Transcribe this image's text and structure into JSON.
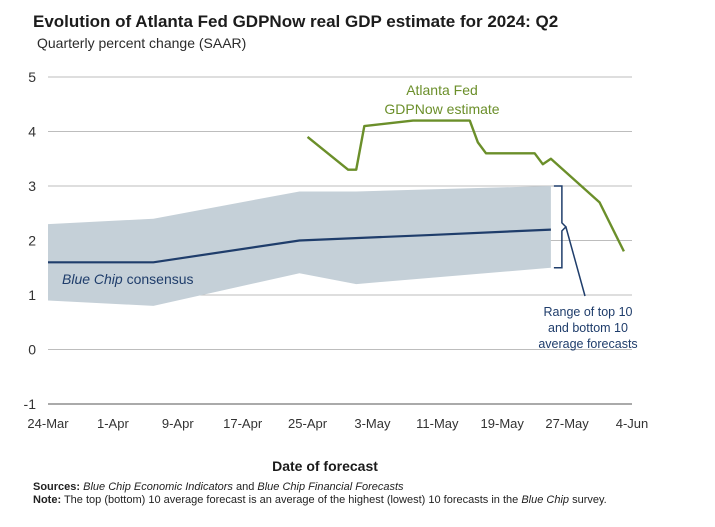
{
  "header": {
    "title": "Evolution of Atlanta Fed GDPNow real GDP estimate for 2024: Q2",
    "subtitle": "Quarterly percent change (SAAR)"
  },
  "chart_data": {
    "type": "line",
    "title": "Evolution of Atlanta Fed GDPNow real GDP estimate for 2024: Q2",
    "subtitle": "Quarterly percent change (SAAR)",
    "xlabel": "Date of forecast",
    "ylabel": "",
    "ylim": [
      -1,
      5
    ],
    "yticks": [
      -1,
      0,
      1,
      2,
      3,
      4,
      5
    ],
    "xticks": [
      "24-Mar",
      "1-Apr",
      "9-Apr",
      "17-Apr",
      "25-Apr",
      "3-May",
      "11-May",
      "19-May",
      "27-May",
      "4-Jun"
    ],
    "grid": "horizontal",
    "colors": {
      "gdpnow": "#6b8f2a",
      "consensus": "#1f3d6b",
      "band": "#c5d0d8",
      "bracket": "#1f3d6b"
    },
    "series": [
      {
        "name": "Atlanta Fed GDPNow estimate",
        "x": [
          "2024-04-25",
          "2024-04-30",
          "2024-05-01",
          "2024-05-02",
          "2024-05-08",
          "2024-05-15",
          "2024-05-16",
          "2024-05-17",
          "2024-05-23",
          "2024-05-24",
          "2024-05-25",
          "2024-05-31",
          "2024-06-03"
        ],
        "values": [
          3.9,
          3.3,
          3.3,
          4.1,
          4.2,
          4.2,
          3.8,
          3.6,
          3.6,
          3.4,
          3.5,
          2.7,
          1.8
        ]
      },
      {
        "name": "Blue Chip consensus",
        "x": [
          "2024-03-24",
          "2024-04-06",
          "2024-04-24",
          "2024-05-10",
          "2024-05-25"
        ],
        "values": [
          1.6,
          1.6,
          2.0,
          2.1,
          2.2
        ]
      },
      {
        "name": "Range of top 10 and bottom 10 average forecasts",
        "x": [
          "2024-03-24",
          "2024-04-06",
          "2024-04-24",
          "2024-05-01",
          "2024-05-25"
        ],
        "upper": [
          2.3,
          2.4,
          2.9,
          2.9,
          3.0
        ],
        "lower": [
          0.9,
          0.8,
          1.4,
          1.2,
          1.5
        ]
      }
    ],
    "annotations": {
      "gdpnow_label": [
        "Atlanta Fed",
        "GDPNow estimate"
      ],
      "consensus_label_italic": "Blue Chip",
      "consensus_label_rest": " consensus",
      "range_label": [
        "Range of top 10",
        "and bottom 10",
        "average forecasts"
      ]
    }
  },
  "footer": {
    "sources_label": "Sources:",
    "sources_part1": "Blue Chip Economic Indicators",
    "sources_and": " and ",
    "sources_part2": "Blue Chip Financial Forecasts",
    "note_label": "Note:",
    "note_text_1": " The top (bottom) 10 average forecast is an average of the highest (lowest) 10 forecasts in the ",
    "note_italic": "Blue Chip",
    "note_text_2": " survey."
  }
}
